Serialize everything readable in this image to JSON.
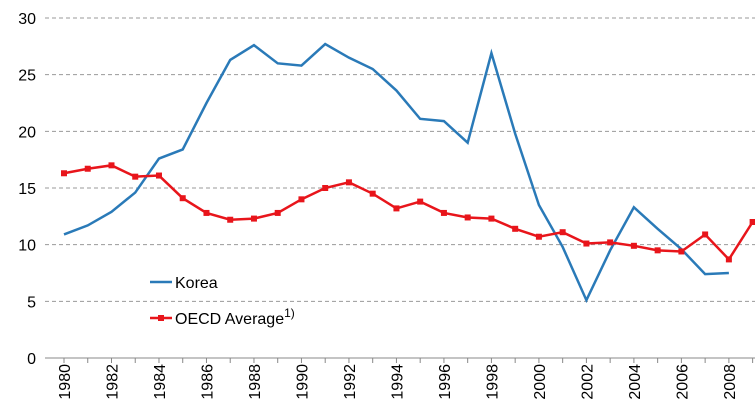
{
  "chart_data": {
    "type": "line",
    "x": [
      1980,
      1981,
      1982,
      1983,
      1984,
      1985,
      1986,
      1987,
      1988,
      1989,
      1990,
      1991,
      1992,
      1993,
      1994,
      1995,
      1996,
      1997,
      1998,
      1999,
      2000,
      2001,
      2002,
      2003,
      2004,
      2005,
      2006,
      2007,
      2008,
      2009
    ],
    "series": [
      {
        "name": "Korea",
        "color": "#2a7ab8",
        "marker": "none",
        "values": [
          10.9,
          11.7,
          12.9,
          14.6,
          17.6,
          18.4,
          22.5,
          26.3,
          27.6,
          26.0,
          25.8,
          27.7,
          26.5,
          25.5,
          23.6,
          21.1,
          20.9,
          19.0,
          26.9,
          19.8,
          13.5,
          9.8,
          5.1,
          9.5,
          13.3,
          11.4,
          9.6,
          7.4,
          7.5,
          null
        ]
      },
      {
        "name": "OECD Average",
        "name_note": "1)",
        "color": "#e8151b",
        "marker": "square",
        "values": [
          16.3,
          16.7,
          17.0,
          16.0,
          16.1,
          14.1,
          12.8,
          12.2,
          12.3,
          12.8,
          14.0,
          15.0,
          15.5,
          14.5,
          13.2,
          13.8,
          12.8,
          12.4,
          12.3,
          11.4,
          10.7,
          11.1,
          10.1,
          10.2,
          9.9,
          9.5,
          9.4,
          10.9,
          8.7,
          12.0
        ]
      }
    ],
    "xlim": [
      1979.2,
      2009.1
    ],
    "xticks": [
      1980,
      1982,
      1984,
      1986,
      1988,
      1990,
      1992,
      1994,
      1996,
      1998,
      2000,
      2002,
      2004,
      2006,
      2008
    ],
    "ylim": [
      0,
      30
    ],
    "yticks": [
      0,
      5,
      10,
      15,
      20,
      25,
      30
    ],
    "grid": true,
    "legend": "lower-left"
  }
}
